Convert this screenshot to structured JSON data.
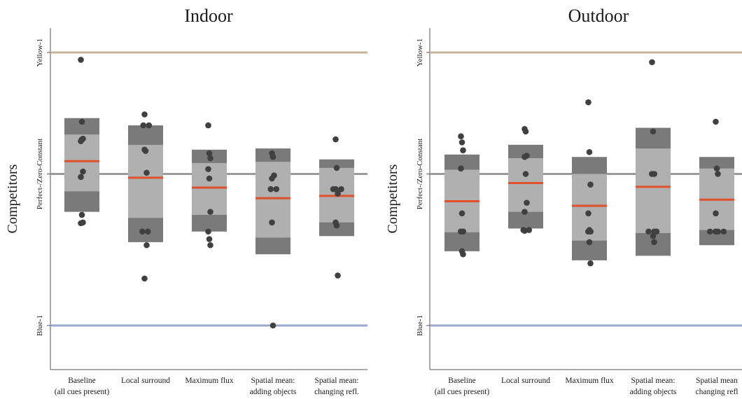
{
  "chart_data": [
    {
      "type": "box",
      "title": "Indoor",
      "ylabel": "Competitors",
      "yticks": [
        {
          "label": "Yellow-1",
          "value": 1
        },
        {
          "label": "Perfect-/Zero-Constant",
          "value": 0
        },
        {
          "label": "Blue-1",
          "value": -1
        }
      ],
      "ylim": [
        -1.3,
        1.17
      ],
      "reference_colors": {
        "Yellow-1": "#c8b49a",
        "Perfect-/Zero-Constant": "#9a9a9a",
        "Blue-1": "#9aa6cf"
      },
      "categories": [
        {
          "line1": "Baseline",
          "line2": "(all cues present)"
        },
        {
          "line1": "Local surround",
          "line2": ""
        },
        {
          "line1": "Maximum flux",
          "line2": ""
        },
        {
          "line1": "Spatial mean:",
          "line2": "adding objects"
        },
        {
          "line1": "Spatial mean:",
          "line2": "changing refl."
        }
      ],
      "boxes": [
        {
          "outer": [
            -0.25,
            0.46
          ],
          "inner": [
            -0.115,
            0.325
          ],
          "median": 0.105,
          "points": [
            0.94,
            0.43,
            0.29,
            0.27,
            0.285,
            0.02,
            -0.02,
            -0.27,
            -0.32,
            -0.325
          ]
        },
        {
          "outer": [
            -0.45,
            0.4
          ],
          "inner": [
            -0.29,
            0.24
          ],
          "median": -0.025,
          "points": [
            0.49,
            0.4,
            0.4,
            0.2,
            0.19,
            0.01,
            -0.38,
            -0.38,
            -0.47,
            -0.69
          ]
        },
        {
          "outer": [
            -0.38,
            0.2
          ],
          "inner": [
            -0.27,
            0.09
          ],
          "median": -0.09,
          "points": [
            0.4,
            0.17,
            0.13,
            0.04,
            -0.03,
            -0.25,
            -0.38,
            -0.43,
            -0.47
          ]
        },
        {
          "outer": [
            -0.53,
            0.21
          ],
          "inner": [
            -0.42,
            0.1
          ],
          "median": -0.16,
          "points": [
            0.17,
            0.14,
            -0.01,
            -0.03,
            -0.1,
            -0.1,
            -0.32,
            -1.0
          ]
        },
        {
          "outer": [
            -0.41,
            0.12
          ],
          "inner": [
            -0.32,
            0.05
          ],
          "median": -0.145,
          "points": [
            0.285,
            0.05,
            -0.1,
            -0.1,
            -0.1,
            -0.13,
            -0.32,
            -0.34,
            -0.67
          ]
        }
      ]
    },
    {
      "type": "box",
      "title": "Outdoor",
      "ylabel": "Competitors",
      "yticks": [
        {
          "label": "Yellow-1",
          "value": 1
        },
        {
          "label": "Perfect-/Zero-Constant",
          "value": 0
        },
        {
          "label": "Blue-1",
          "value": -1
        }
      ],
      "ylim": [
        -1.3,
        1.17
      ],
      "reference_colors": {
        "Yellow-1": "#c8b49a",
        "Perfect-/Zero-Constant": "#9a9a9a",
        "Blue-1": "#9aa6cf"
      },
      "categories": [
        {
          "line1": "Baseline",
          "line2": "(all cues present)"
        },
        {
          "line1": "Local surround",
          "line2": ""
        },
        {
          "line1": "Maximum flux",
          "line2": ""
        },
        {
          "line1": "Spatial mean:",
          "line2": "adding objects"
        },
        {
          "line1": "Spatial mean",
          "line2": "changing refl"
        }
      ],
      "boxes": [
        {
          "outer": [
            -0.51,
            0.16
          ],
          "inner": [
            -0.385,
            0.035
          ],
          "median": -0.18,
          "points": [
            0.31,
            0.26,
            0.195,
            0.045,
            -0.26,
            -0.38,
            -0.38,
            -0.51,
            -0.53
          ]
        },
        {
          "outer": [
            -0.36,
            0.24
          ],
          "inner": [
            -0.25,
            0.13
          ],
          "median": -0.06,
          "points": [
            0.37,
            0.35,
            0.15,
            0.14,
            0.0,
            -0.19,
            -0.25,
            -0.37,
            -0.37,
            -0.375
          ]
        },
        {
          "outer": [
            -0.57,
            0.14
          ],
          "inner": [
            -0.44,
            0.0
          ],
          "median": -0.21,
          "points": [
            0.59,
            0.18,
            -0.07,
            -0.26,
            -0.37,
            -0.38,
            -0.38,
            -0.45,
            -0.59
          ]
        },
        {
          "outer": [
            -0.54,
            0.38
          ],
          "inner": [
            -0.39,
            0.21
          ],
          "median": -0.085,
          "points": [
            0.92,
            0.35,
            0.0,
            0.0,
            -0.38,
            -0.38,
            -0.38,
            -0.41,
            -0.45
          ]
        },
        {
          "outer": [
            -0.47,
            0.14
          ],
          "inner": [
            -0.37,
            0.045
          ],
          "median": -0.17,
          "points": [
            0.43,
            0.045,
            0.0,
            -0.26,
            -0.38,
            -0.38,
            -0.38,
            -0.38
          ]
        }
      ]
    }
  ],
  "colors": {
    "outer_box": "#7a7a7a",
    "inner_box": "#b0b0b0",
    "median": "#e0502a",
    "point": "#404040",
    "axis": "#555555"
  }
}
